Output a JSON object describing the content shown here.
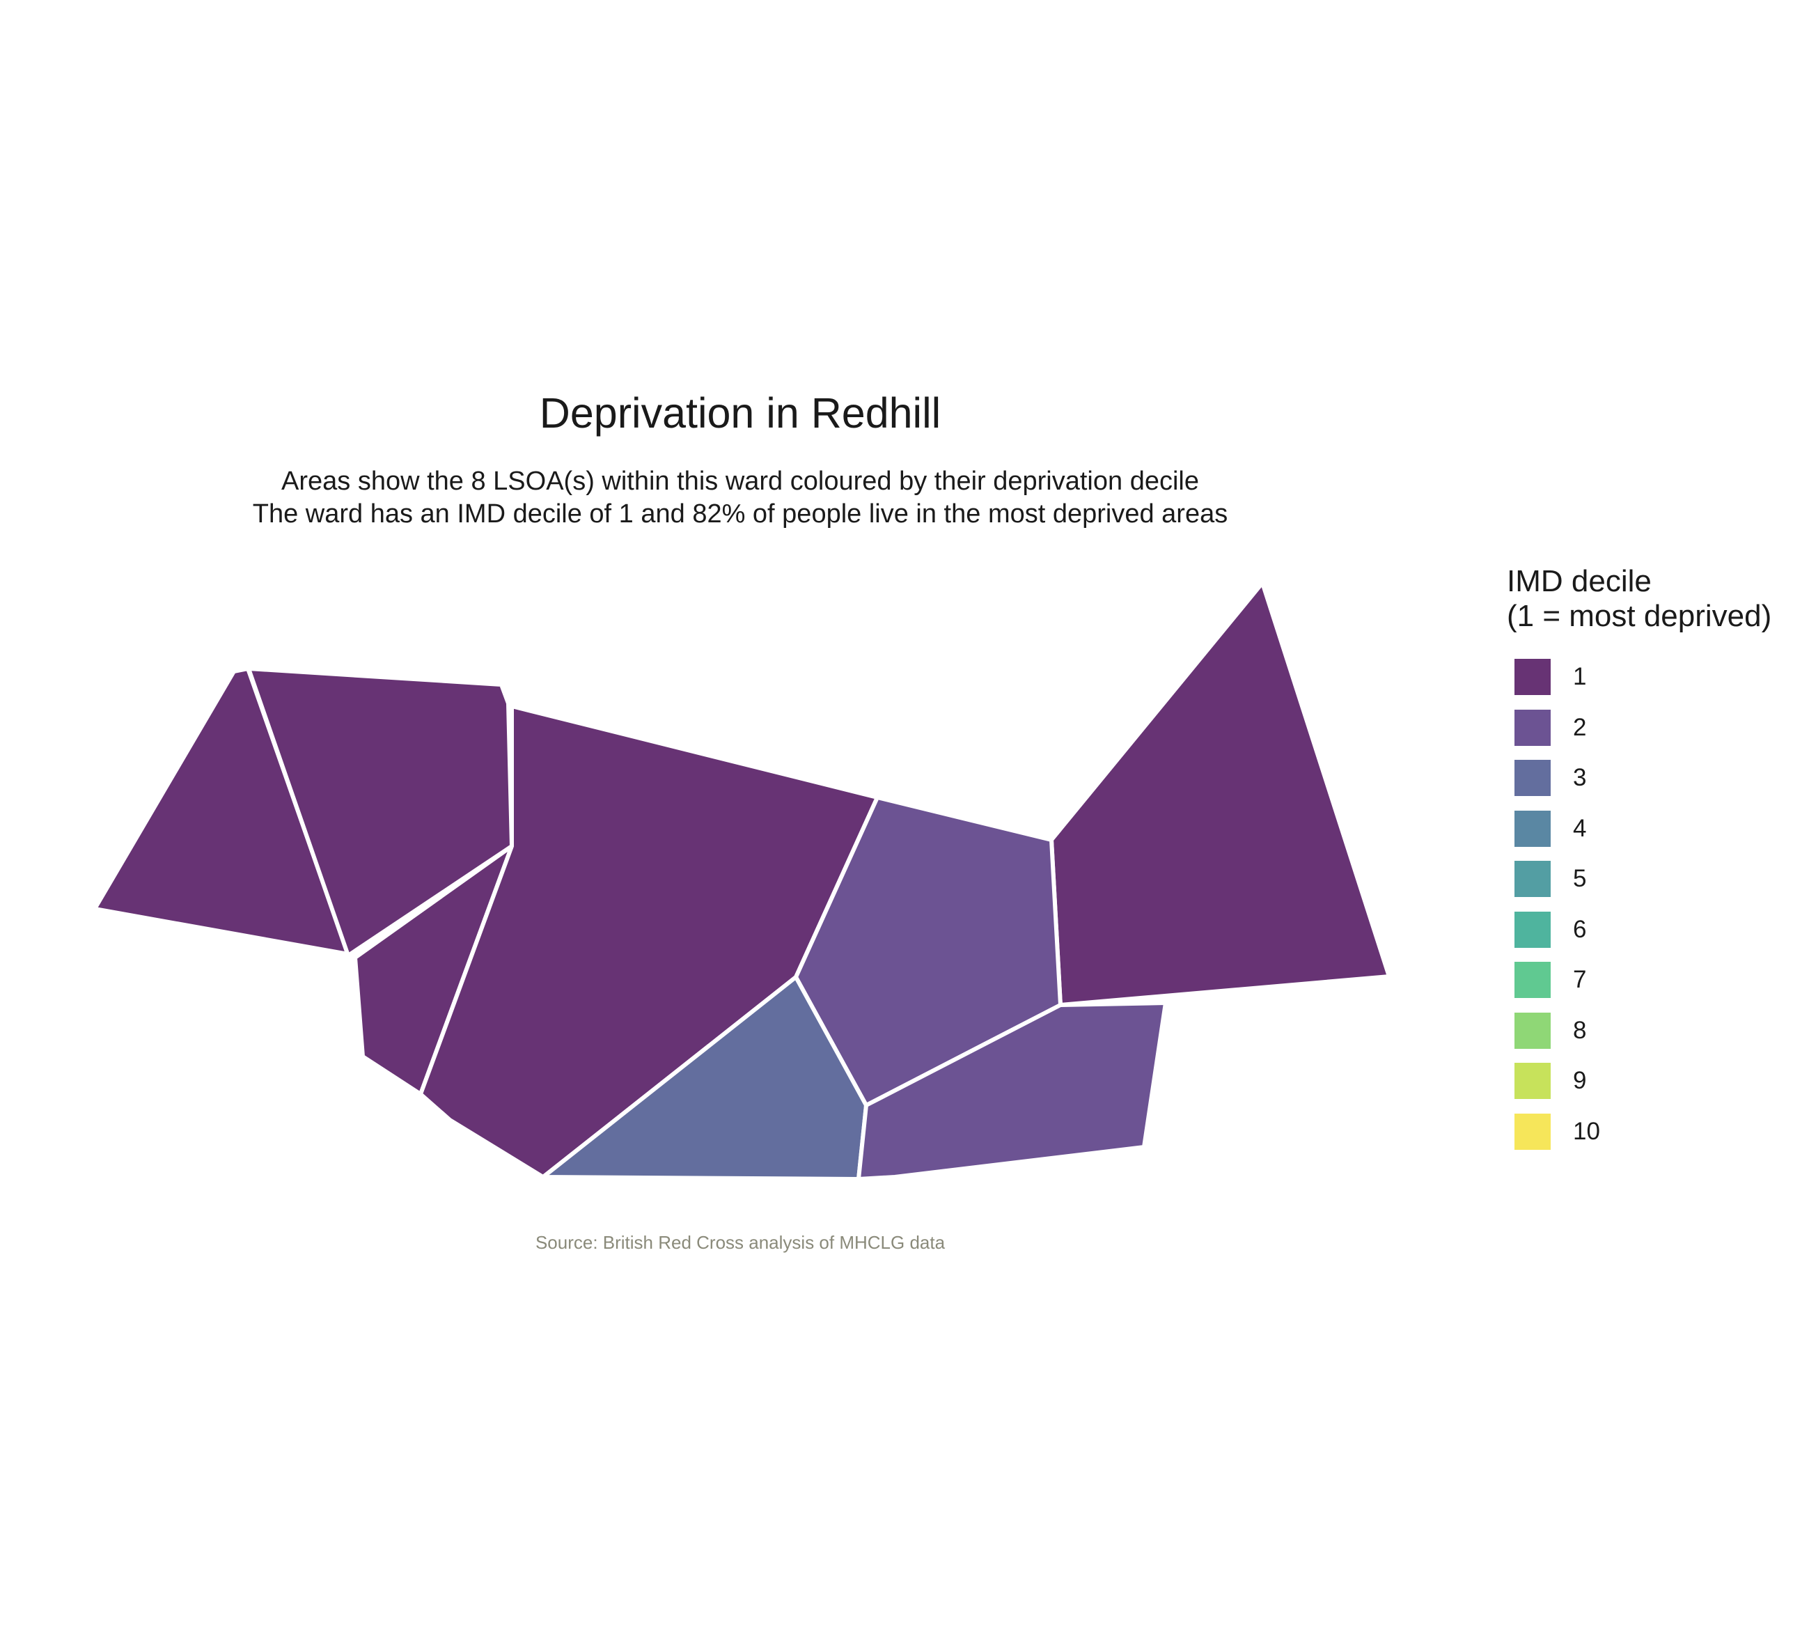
{
  "title": "Deprivation in Redhill",
  "subtitle_line1": "Areas show the 8 LSOA(s) within this ward coloured by their deprivation decile",
  "subtitle_line2": "The ward has an IMD decile of 1 and 82% of people live in the most deprived areas",
  "caption": "Source: British Red Cross analysis of MHCLG data",
  "legend": {
    "title_line1": "IMD decile",
    "title_line2": "(1 = most deprived)",
    "items": [
      {
        "label": "1",
        "color": "#673374"
      },
      {
        "label": "2",
        "color": "#6c5393"
      },
      {
        "label": "3",
        "color": "#636e9e"
      },
      {
        "label": "4",
        "color": "#5a87a3"
      },
      {
        "label": "5",
        "color": "#539ea3"
      },
      {
        "label": "6",
        "color": "#4fb49e"
      },
      {
        "label": "7",
        "color": "#60c991"
      },
      {
        "label": "8",
        "color": "#8fd776"
      },
      {
        "label": "9",
        "color": "#c7e25b"
      },
      {
        "label": "10",
        "color": "#f6e65a"
      }
    ]
  },
  "chart_data": {
    "type": "choropleth",
    "title": "Deprivation in Redhill",
    "areas_count": 8,
    "ward_imd_decile": 1,
    "percent_in_most_deprived": 82,
    "lsoa_deciles": [
      1,
      1,
      1,
      1,
      1,
      2,
      3,
      2
    ],
    "legend_title": "IMD decile (1 = most deprived)",
    "legend_categories": [
      "1",
      "2",
      "3",
      "4",
      "5",
      "6",
      "7",
      "8",
      "9",
      "10"
    ],
    "legend_position": "right"
  }
}
